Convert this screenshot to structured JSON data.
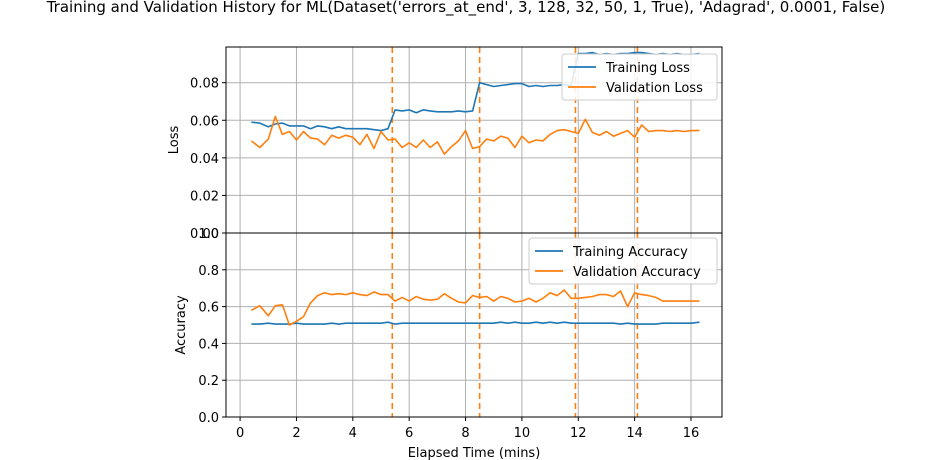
{
  "title": "Training and Validation History for ML(Dataset('errors_at_end', 3, 128, 32, 50, 1, True), 'Adagrad', 0.0001, False)",
  "colors": {
    "training": "#1f77b4",
    "validation": "#ff7f0e",
    "grid": "#b0b0b0"
  },
  "chart_data": [
    {
      "type": "line",
      "ylabel": "Loss",
      "xlabel": "",
      "xlim": [
        -0.5,
        17.1
      ],
      "ylim": [
        0,
        0.099
      ],
      "yticks": [
        0.0,
        0.02,
        0.04,
        0.06,
        0.08
      ],
      "ytick_labels": [
        "0.00",
        "0.02",
        "0.04",
        "0.06",
        "0.08"
      ],
      "grid": true,
      "legend": "top-right",
      "vlines": [
        5.4,
        8.5,
        11.9,
        14.1
      ],
      "series": [
        {
          "name": "Training Loss",
          "color": "#1f77b4",
          "x": [
            0.4,
            0.7,
            1.0,
            1.25,
            1.5,
            1.75,
            2.0,
            2.25,
            2.5,
            2.75,
            3.0,
            3.25,
            3.5,
            3.75,
            4.0,
            4.25,
            4.5,
            4.75,
            5.0,
            5.25,
            5.5,
            5.75,
            6.0,
            6.25,
            6.5,
            6.75,
            7.0,
            7.25,
            7.5,
            7.75,
            8.0,
            8.25,
            8.5,
            8.75,
            9.0,
            9.25,
            9.5,
            9.75,
            10.0,
            10.25,
            10.5,
            10.75,
            11.0,
            11.25,
            11.5,
            11.75,
            12.0,
            12.25,
            12.5,
            12.75,
            13.0,
            13.25,
            13.5,
            13.75,
            14.0,
            14.25,
            14.5,
            14.75,
            15.0,
            15.25,
            15.5,
            15.75,
            16.0,
            16.3
          ],
          "y": [
            0.059,
            0.0585,
            0.0565,
            0.058,
            0.0585,
            0.057,
            0.057,
            0.057,
            0.0555,
            0.057,
            0.0565,
            0.0555,
            0.0565,
            0.0555,
            0.0555,
            0.0555,
            0.0555,
            0.055,
            0.0545,
            0.0555,
            0.0655,
            0.065,
            0.0655,
            0.064,
            0.0655,
            0.065,
            0.0645,
            0.0645,
            0.0645,
            0.065,
            0.0645,
            0.065,
            0.08,
            0.079,
            0.078,
            0.0785,
            0.079,
            0.0795,
            0.0795,
            0.078,
            0.0785,
            0.078,
            0.0785,
            0.0785,
            0.079,
            0.0785,
            0.0955,
            0.0955,
            0.096,
            0.095,
            0.0955,
            0.095,
            0.0955,
            0.0955,
            0.096,
            0.096,
            0.0955,
            0.095,
            0.0955,
            0.095,
            0.0955,
            0.095,
            0.095,
            0.0955
          ]
        },
        {
          "name": "Validation Loss",
          "color": "#ff7f0e",
          "x": [
            0.4,
            0.7,
            1.0,
            1.25,
            1.5,
            1.75,
            2.0,
            2.25,
            2.5,
            2.75,
            3.0,
            3.25,
            3.5,
            3.75,
            4.0,
            4.25,
            4.5,
            4.75,
            5.0,
            5.25,
            5.5,
            5.75,
            6.0,
            6.25,
            6.5,
            6.75,
            7.0,
            7.25,
            7.5,
            7.75,
            8.0,
            8.25,
            8.5,
            8.75,
            9.0,
            9.25,
            9.5,
            9.75,
            10.0,
            10.25,
            10.5,
            10.75,
            11.0,
            11.25,
            11.5,
            11.75,
            12.0,
            12.25,
            12.5,
            12.75,
            13.0,
            13.25,
            13.5,
            13.75,
            14.0,
            14.25,
            14.5,
            14.75,
            15.0,
            15.25,
            15.5,
            15.75,
            16.0,
            16.3
          ],
          "y": [
            0.049,
            0.0455,
            0.05,
            0.062,
            0.0525,
            0.054,
            0.0495,
            0.054,
            0.0505,
            0.05,
            0.047,
            0.052,
            0.0505,
            0.052,
            0.051,
            0.047,
            0.0525,
            0.045,
            0.054,
            0.0495,
            0.05,
            0.0455,
            0.048,
            0.0455,
            0.0495,
            0.0455,
            0.0485,
            0.042,
            0.046,
            0.049,
            0.0545,
            0.045,
            0.046,
            0.05,
            0.049,
            0.0515,
            0.0505,
            0.0455,
            0.0515,
            0.048,
            0.0495,
            0.049,
            0.0525,
            0.0545,
            0.055,
            0.054,
            0.053,
            0.0605,
            0.0535,
            0.052,
            0.054,
            0.0515,
            0.053,
            0.0545,
            0.051,
            0.0575,
            0.054,
            0.0545,
            0.0545,
            0.054,
            0.0545,
            0.054,
            0.0545,
            0.0545
          ]
        }
      ]
    },
    {
      "type": "line",
      "ylabel": "Accuracy",
      "xlabel": "Elapsed Time (mins)",
      "xlim": [
        -0.5,
        17.1
      ],
      "ylim": [
        0,
        1.0
      ],
      "yticks": [
        0.0,
        0.2,
        0.4,
        0.6,
        0.8,
        1.0
      ],
      "ytick_labels": [
        "0.0",
        "0.2",
        "0.4",
        "0.6",
        "0.8",
        "1.0"
      ],
      "xticks": [
        0,
        2,
        4,
        6,
        8,
        10,
        12,
        14,
        16
      ],
      "xtick_labels": [
        "0",
        "2",
        "4",
        "6",
        "8",
        "10",
        "12",
        "14",
        "16"
      ],
      "grid": true,
      "legend": "top-right",
      "vlines": [
        5.4,
        8.5,
        11.9,
        14.1
      ],
      "series": [
        {
          "name": "Training Accuracy",
          "color": "#1f77b4",
          "x": [
            0.4,
            0.7,
            1.0,
            1.25,
            1.5,
            1.75,
            2.0,
            2.25,
            2.5,
            2.75,
            3.0,
            3.25,
            3.5,
            3.75,
            4.0,
            4.25,
            4.5,
            4.75,
            5.0,
            5.25,
            5.5,
            5.75,
            6.0,
            6.25,
            6.5,
            6.75,
            7.0,
            7.25,
            7.5,
            7.75,
            8.0,
            8.25,
            8.5,
            8.75,
            9.0,
            9.25,
            9.5,
            9.75,
            10.0,
            10.25,
            10.5,
            10.75,
            11.0,
            11.25,
            11.5,
            11.75,
            12.0,
            12.25,
            12.5,
            12.75,
            13.0,
            13.25,
            13.5,
            13.75,
            14.0,
            14.25,
            14.5,
            14.75,
            15.0,
            15.25,
            15.5,
            15.75,
            16.0,
            16.3
          ],
          "y": [
            0.505,
            0.505,
            0.51,
            0.505,
            0.505,
            0.505,
            0.51,
            0.505,
            0.505,
            0.505,
            0.505,
            0.51,
            0.505,
            0.51,
            0.51,
            0.51,
            0.51,
            0.51,
            0.51,
            0.515,
            0.505,
            0.51,
            0.51,
            0.51,
            0.51,
            0.51,
            0.51,
            0.51,
            0.51,
            0.51,
            0.51,
            0.51,
            0.51,
            0.51,
            0.51,
            0.515,
            0.51,
            0.515,
            0.51,
            0.51,
            0.515,
            0.51,
            0.515,
            0.51,
            0.515,
            0.51,
            0.51,
            0.51,
            0.51,
            0.51,
            0.51,
            0.51,
            0.505,
            0.51,
            0.505,
            0.505,
            0.505,
            0.505,
            0.51,
            0.51,
            0.51,
            0.51,
            0.51,
            0.515
          ]
        },
        {
          "name": "Validation Accuracy",
          "color": "#ff7f0e",
          "x": [
            0.4,
            0.7,
            1.0,
            1.25,
            1.5,
            1.75,
            2.0,
            2.25,
            2.5,
            2.75,
            3.0,
            3.25,
            3.5,
            3.75,
            4.0,
            4.25,
            4.5,
            4.75,
            5.0,
            5.25,
            5.5,
            5.75,
            6.0,
            6.25,
            6.5,
            6.75,
            7.0,
            7.25,
            7.5,
            7.75,
            8.0,
            8.25,
            8.5,
            8.75,
            9.0,
            9.25,
            9.5,
            9.75,
            10.0,
            10.25,
            10.5,
            10.75,
            11.0,
            11.25,
            11.5,
            11.75,
            12.0,
            12.25,
            12.5,
            12.75,
            13.0,
            13.25,
            13.5,
            13.75,
            14.0,
            14.25,
            14.5,
            14.75,
            15.0,
            15.25,
            15.5,
            15.75,
            16.0,
            16.3
          ],
          "y": [
            0.58,
            0.605,
            0.55,
            0.605,
            0.61,
            0.5,
            0.52,
            0.545,
            0.62,
            0.66,
            0.675,
            0.665,
            0.67,
            0.665,
            0.675,
            0.665,
            0.66,
            0.68,
            0.665,
            0.665,
            0.63,
            0.65,
            0.63,
            0.655,
            0.64,
            0.635,
            0.64,
            0.67,
            0.645,
            0.625,
            0.62,
            0.66,
            0.65,
            0.655,
            0.63,
            0.655,
            0.645,
            0.625,
            0.63,
            0.645,
            0.625,
            0.645,
            0.675,
            0.66,
            0.69,
            0.645,
            0.645,
            0.65,
            0.655,
            0.665,
            0.665,
            0.655,
            0.685,
            0.6,
            0.675,
            0.665,
            0.66,
            0.65,
            0.63,
            0.63,
            0.63,
            0.63,
            0.63,
            0.63
          ]
        }
      ]
    }
  ]
}
